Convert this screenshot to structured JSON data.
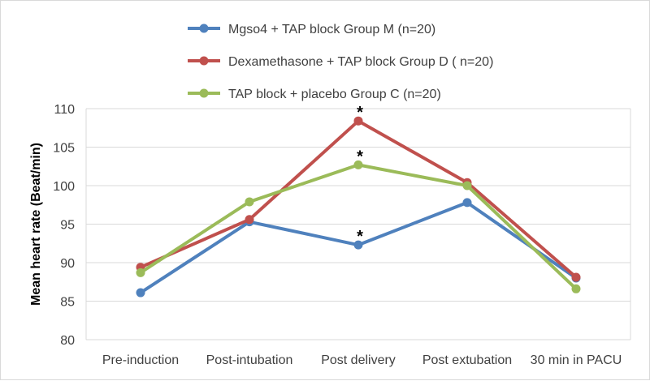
{
  "chart_data": {
    "type": "line",
    "title": "",
    "xlabel": "",
    "ylabel": "Mean heart rate (Beat/min)",
    "ylim": [
      80,
      110
    ],
    "yticks": [
      80,
      85,
      90,
      95,
      100,
      105,
      110
    ],
    "grid": "horizontal",
    "legend_position": "top",
    "categories": [
      "Pre-induction",
      "Post-intubation",
      "Post delivery",
      "Post extubation",
      "30 min in PACU"
    ],
    "series": [
      {
        "name": "Mgso4 + TAP block Group M (n=20)",
        "color": "#4f81bd",
        "values": [
          86.1,
          95.3,
          92.3,
          97.8,
          88.0
        ],
        "annotations": [
          null,
          null,
          "*",
          null,
          null
        ]
      },
      {
        "name": "Dexamethasone + TAP block Group D ( n=20)",
        "color": "#c0504d",
        "values": [
          89.4,
          95.6,
          108.4,
          100.4,
          88.1
        ],
        "annotations": [
          null,
          null,
          "*",
          null,
          null
        ]
      },
      {
        "name": "TAP block + placebo Group C (n=20)",
        "color": "#9bbb59",
        "values": [
          88.7,
          97.9,
          102.7,
          100.0,
          86.6
        ],
        "annotations": [
          null,
          null,
          "*",
          null,
          null
        ]
      }
    ]
  }
}
